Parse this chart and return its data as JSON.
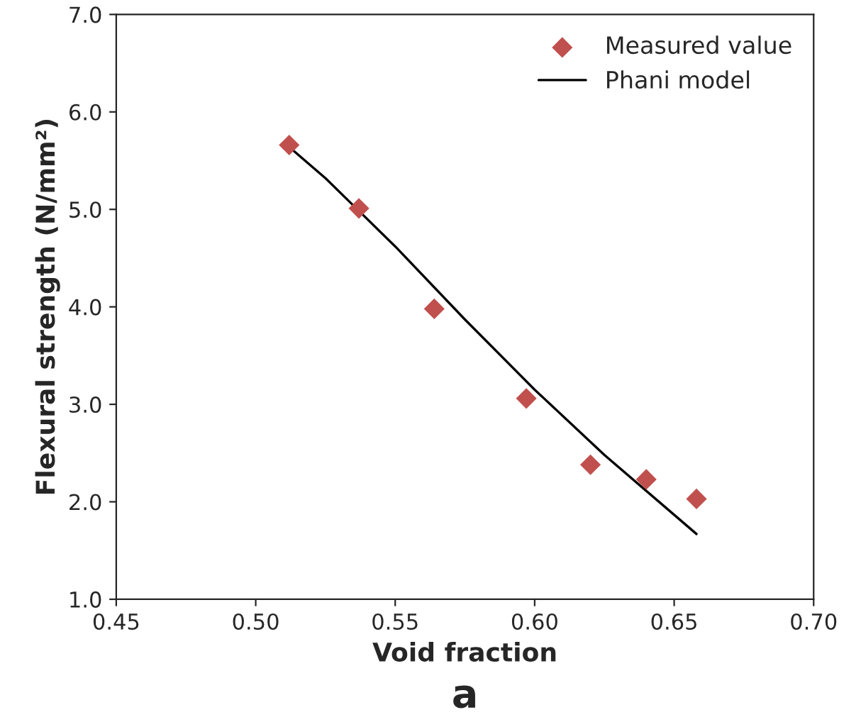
{
  "chart_data": {
    "type": "scatter",
    "xlabel": "Void fraction",
    "ylabel": "Flexural strength (N/mm²)",
    "series": [
      {
        "name": "Measured value",
        "color": "#c0504d",
        "marker": "diamond",
        "x": [
          0.512,
          0.537,
          0.564,
          0.597,
          0.62,
          0.64,
          0.658
        ],
        "values": [
          5.66,
          5.01,
          3.98,
          3.06,
          2.38,
          2.23,
          2.03
        ]
      },
      {
        "name": "Phani model",
        "type": "line",
        "color": "#000000",
        "marker": "none",
        "line_style": "solid",
        "x": [
          0.512,
          0.525,
          0.55,
          0.575,
          0.6,
          0.625,
          0.658
        ],
        "values": [
          5.64,
          5.32,
          4.62,
          3.87,
          3.15,
          2.48,
          1.67
        ]
      }
    ],
    "xlim": [
      0.45,
      0.7
    ],
    "xticks": [
      {
        "value": 0.45,
        "label": "0.45"
      },
      {
        "value": 0.5,
        "label": "0.50"
      },
      {
        "value": 0.55,
        "label": "0.55"
      },
      {
        "value": 0.6,
        "label": "0.60"
      },
      {
        "value": 0.65,
        "label": "0.65"
      },
      {
        "value": 0.7,
        "label": "0.70"
      }
    ],
    "ylim": [
      1,
      7
    ],
    "yticks": [
      {
        "value": 1,
        "label": "1.0"
      },
      {
        "value": 2,
        "label": "2.0"
      },
      {
        "value": 3,
        "label": "3.0"
      },
      {
        "value": 4,
        "label": "4.0"
      },
      {
        "value": 5,
        "label": "5.0"
      },
      {
        "value": 6,
        "label": "6.0"
      },
      {
        "value": 7,
        "label": "7.0"
      }
    ],
    "grid": false,
    "legend": "top right",
    "annotations": [
      "a"
    ]
  }
}
